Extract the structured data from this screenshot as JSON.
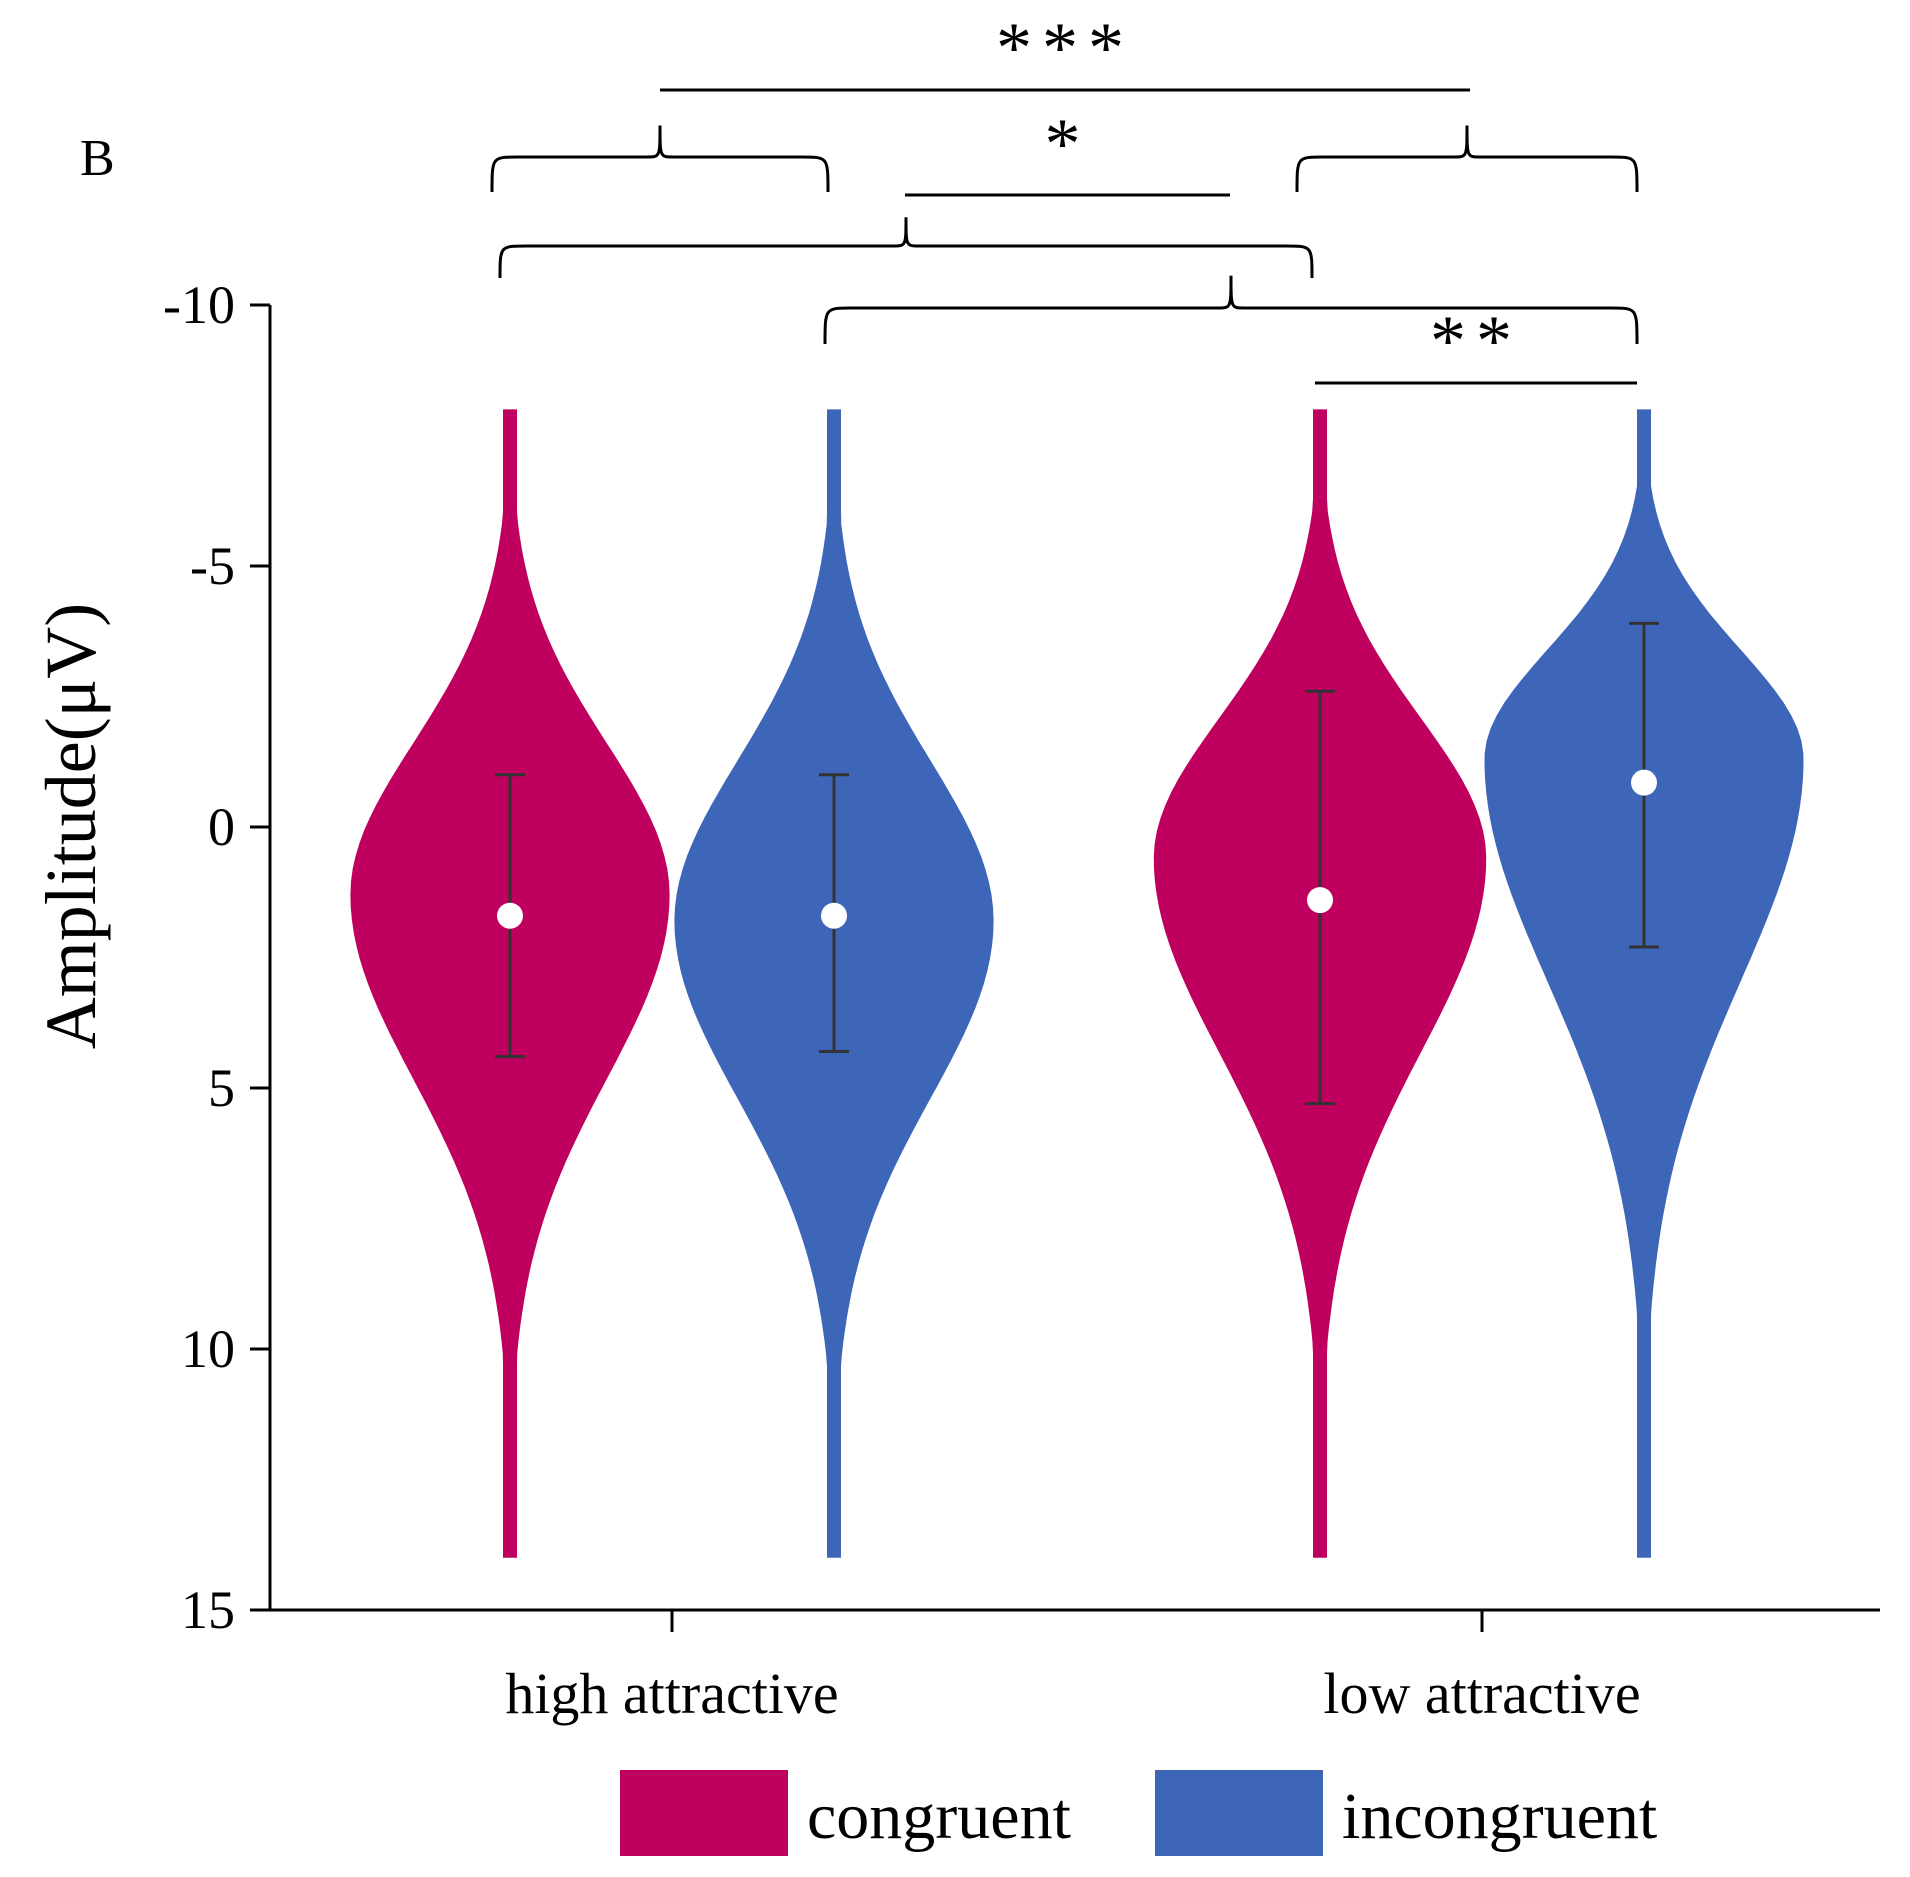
{
  "chart_data": {
    "type": "violin",
    "panel_label": "B",
    "title": "",
    "xlabel": "",
    "ylabel": "Amplitude(μV)",
    "y_inverted": true,
    "ylim": [
      -10,
      15
    ],
    "yticks": [
      -10,
      -5,
      0,
      5,
      10,
      15
    ],
    "ytick_labels": [
      "-10",
      "-5",
      "0",
      "5",
      "10",
      "15"
    ],
    "categories": [
      "high attractive",
      "low attractive"
    ],
    "grid": false,
    "legend_position": "bottom",
    "series": [
      {
        "name": "congruent",
        "color": "#c0005f",
        "mean": [
          1.7,
          1.4
        ],
        "error_low": [
          -1.0,
          -2.6
        ],
        "error_high": [
          4.4,
          5.3
        ],
        "violin_min": [
          -8,
          -8
        ],
        "violin_max": [
          14,
          14
        ],
        "violin_mode": [
          1.3,
          0.6
        ],
        "violin_half_width": [
          0.12,
          0.125
        ]
      },
      {
        "name": "incongruent",
        "color": "#3d66b8",
        "mean": [
          1.7,
          -0.85
        ],
        "error_low": [
          -1.0,
          -3.9
        ],
        "error_high": [
          4.3,
          2.3
        ],
        "violin_min": [
          -8,
          -8
        ],
        "violin_max": [
          14,
          14
        ],
        "violin_mode": [
          1.8,
          -1.3
        ],
        "violin_half_width": [
          0.12,
          0.12
        ]
      }
    ],
    "significance": [
      {
        "label": "***",
        "between": "high attractive vs low attractive"
      },
      {
        "label": "*",
        "between": "congruent vs incongruent"
      },
      {
        "label": "**",
        "between": "low attractive: congruent vs incongruent"
      }
    ]
  }
}
